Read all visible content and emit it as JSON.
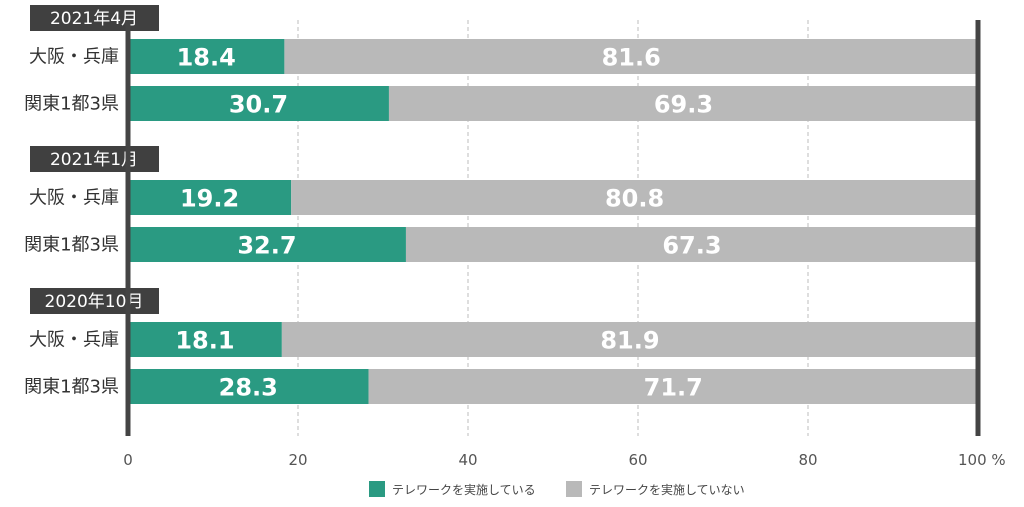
{
  "chart_data": {
    "type": "bar",
    "orientation": "horizontal",
    "stacked": true,
    "unit": "%",
    "xlim": [
      0,
      100
    ],
    "xticks": [
      "0",
      "20",
      "40",
      "60",
      "80",
      "100 %"
    ],
    "grid": true,
    "legend_position": "bottom",
    "colors": {
      "teleworking": "#2a9a82",
      "not_teleworking": "#b9b9b9",
      "group_label_bg": "#404040",
      "axis": "#444444"
    },
    "groups": [
      {
        "label": "2021年4月",
        "categories": [
          "大阪・兵庫",
          "関東1都3県"
        ],
        "series": [
          {
            "name": "テレワークを実施している",
            "values": [
              18.4,
              30.7
            ]
          },
          {
            "name": "テレワークを実施していない",
            "values": [
              81.6,
              69.3
            ]
          }
        ]
      },
      {
        "label": "2021年1月",
        "categories": [
          "大阪・兵庫",
          "関東1都3県"
        ],
        "series": [
          {
            "name": "テレワークを実施している",
            "values": [
              19.2,
              32.7
            ]
          },
          {
            "name": "テレワークを実施していない",
            "values": [
              80.8,
              67.3
            ]
          }
        ]
      },
      {
        "label": "2020年10月",
        "categories": [
          "大阪・兵庫",
          "関東1都3県"
        ],
        "series": [
          {
            "name": "テレワークを実施している",
            "values": [
              18.1,
              28.3
            ]
          },
          {
            "name": "テレワークを実施していない",
            "values": [
              81.9,
              71.7
            ]
          }
        ]
      }
    ],
    "legend": [
      "テレワークを実施している",
      "テレワークを実施していない"
    ]
  }
}
